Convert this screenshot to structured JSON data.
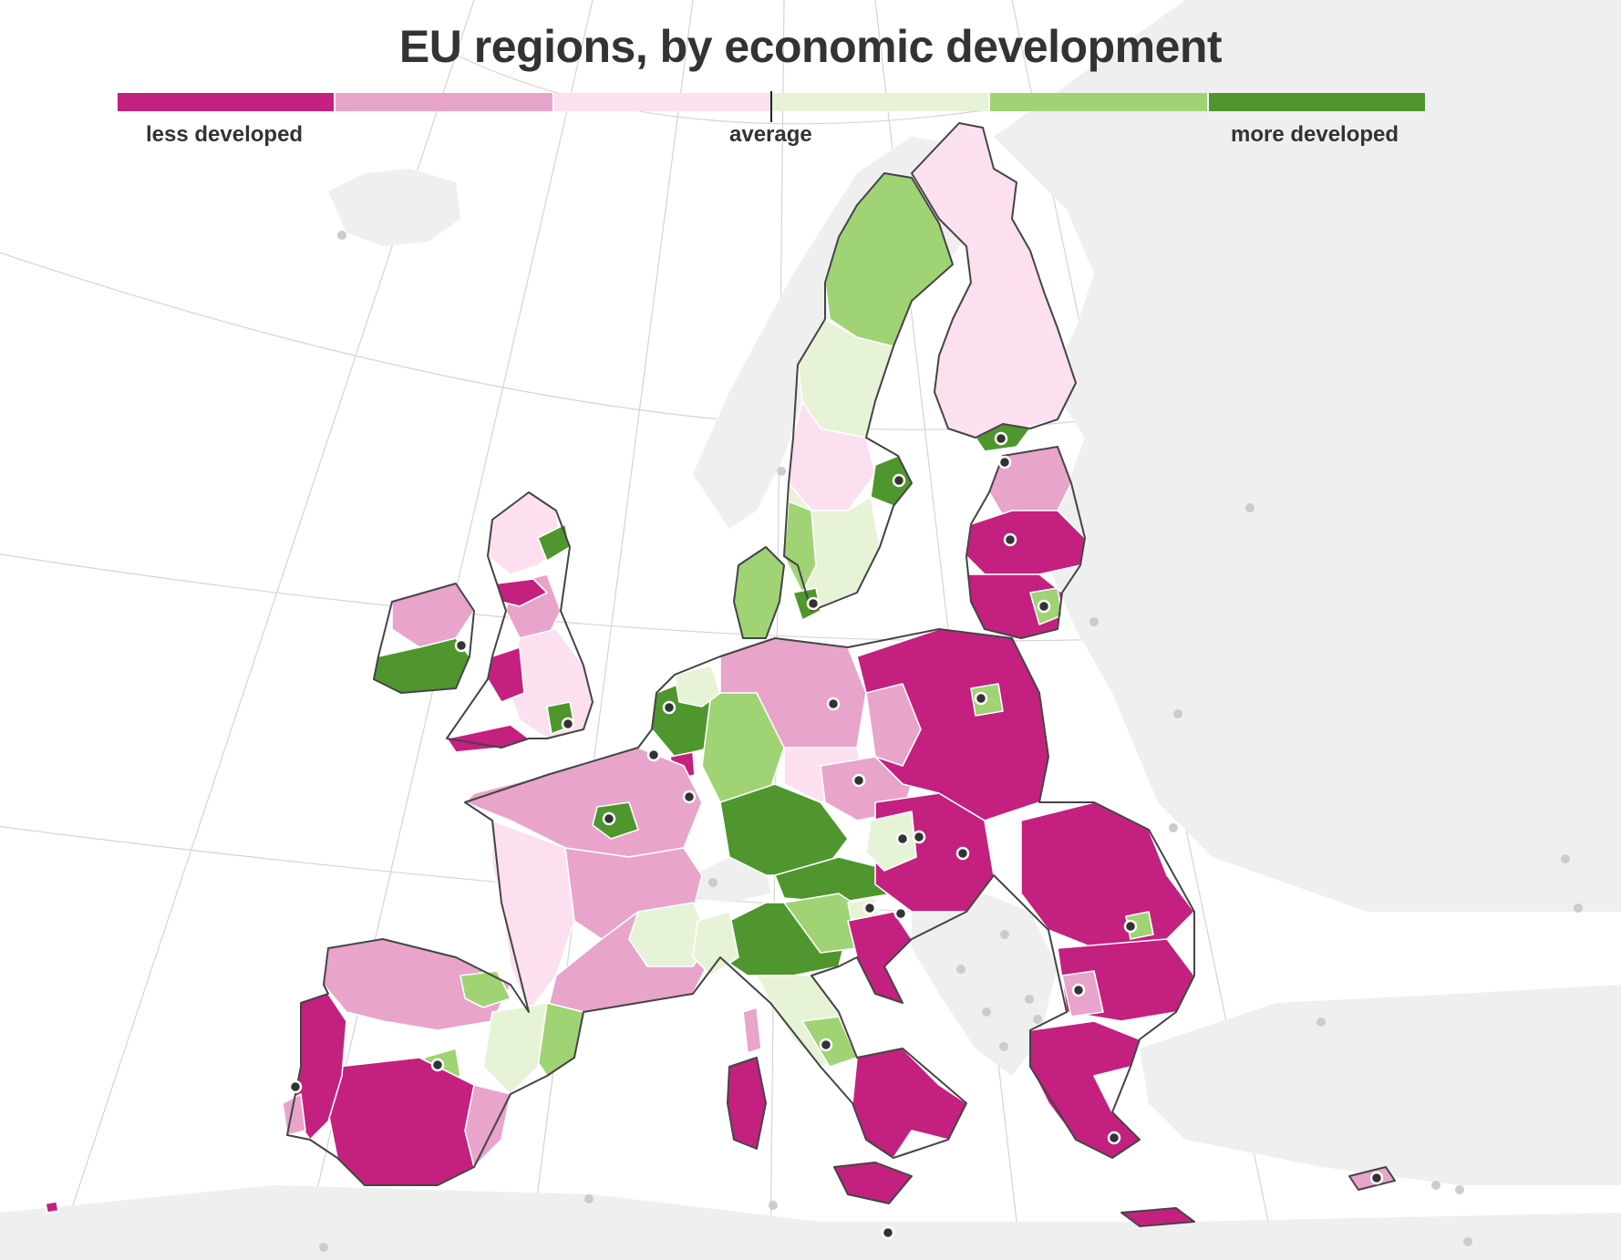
{
  "title": "EU regions, by economic development",
  "legend": {
    "labels": {
      "low": "less developed",
      "mid": "average",
      "high": "more developed"
    },
    "classes": [
      "#c3207f",
      "#e8a4ca",
      "#fce0ef",
      "#e6f3d6",
      "#a0d373",
      "#4e962d"
    ]
  },
  "colors": {
    "background_land": "#efefef",
    "sea": "#ffffff",
    "graticule": "#d4d4d4",
    "eu_border": "#444444",
    "capital_dot": "#333333",
    "other_city_dot": "#cccccc"
  }
}
